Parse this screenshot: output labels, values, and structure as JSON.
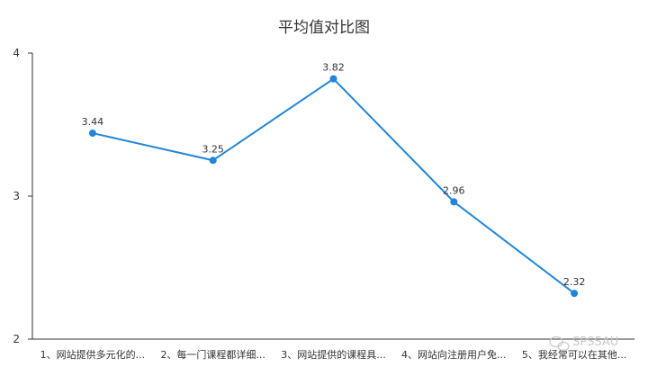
{
  "chart_data": {
    "type": "line",
    "title": "平均值对比图",
    "categories": [
      "1、网站提供多元化的...",
      "2、每一门课程都详细...",
      "3、网站提供的课程具...",
      "4、网站向注册用户免...",
      "5、我经常可以在其他..."
    ],
    "series": [
      {
        "values": [
          3.44,
          3.25,
          3.82,
          2.96,
          2.32
        ]
      }
    ],
    "data_labels": [
      "3.44",
      "3.25",
      "3.82",
      "2.96",
      "2.32"
    ],
    "y_ticks": [
      "4",
      "3",
      "2"
    ],
    "ylim": [
      2,
      4
    ],
    "grid": false,
    "legend": "none",
    "line_color": "#2186d9"
  },
  "watermark": "SPSSAU"
}
